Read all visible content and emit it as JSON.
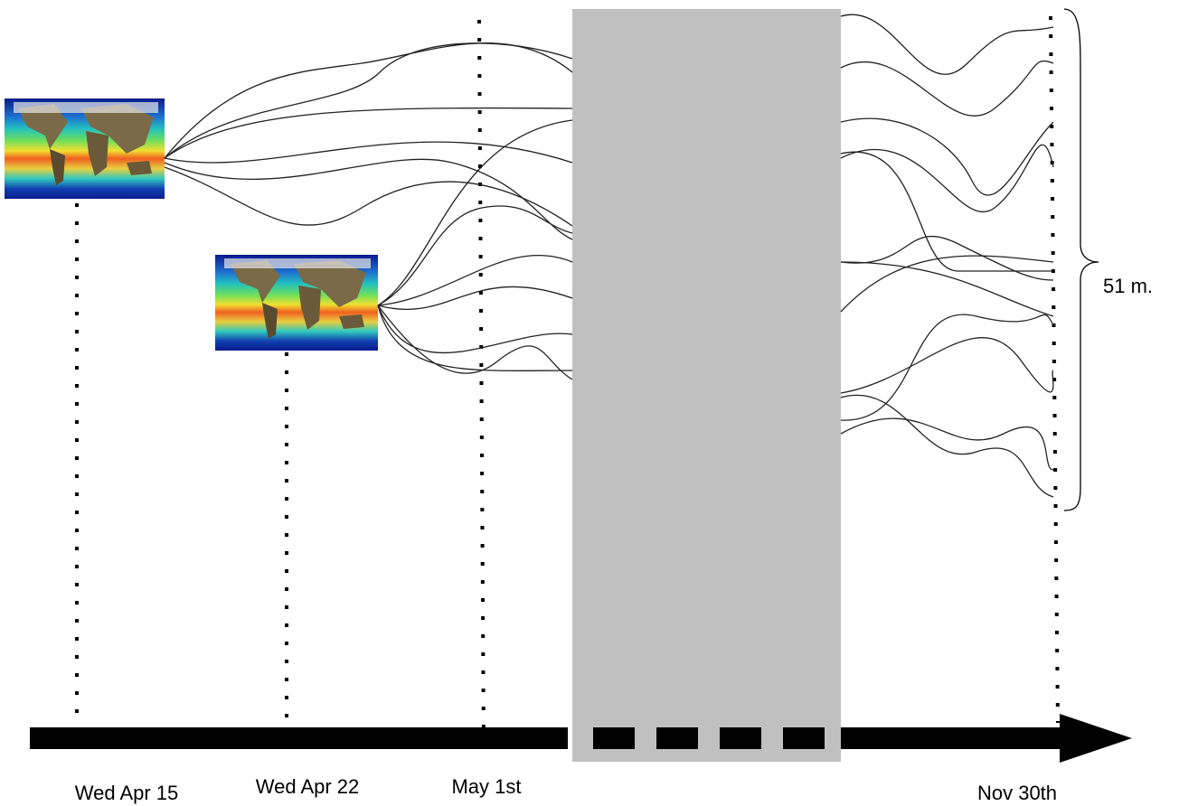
{
  "ensemble_label": "51 m.",
  "timeline": {
    "dates": [
      "Wed Apr 15",
      "Wed Apr 22",
      "May 1st",
      "Nov 30th"
    ]
  }
}
